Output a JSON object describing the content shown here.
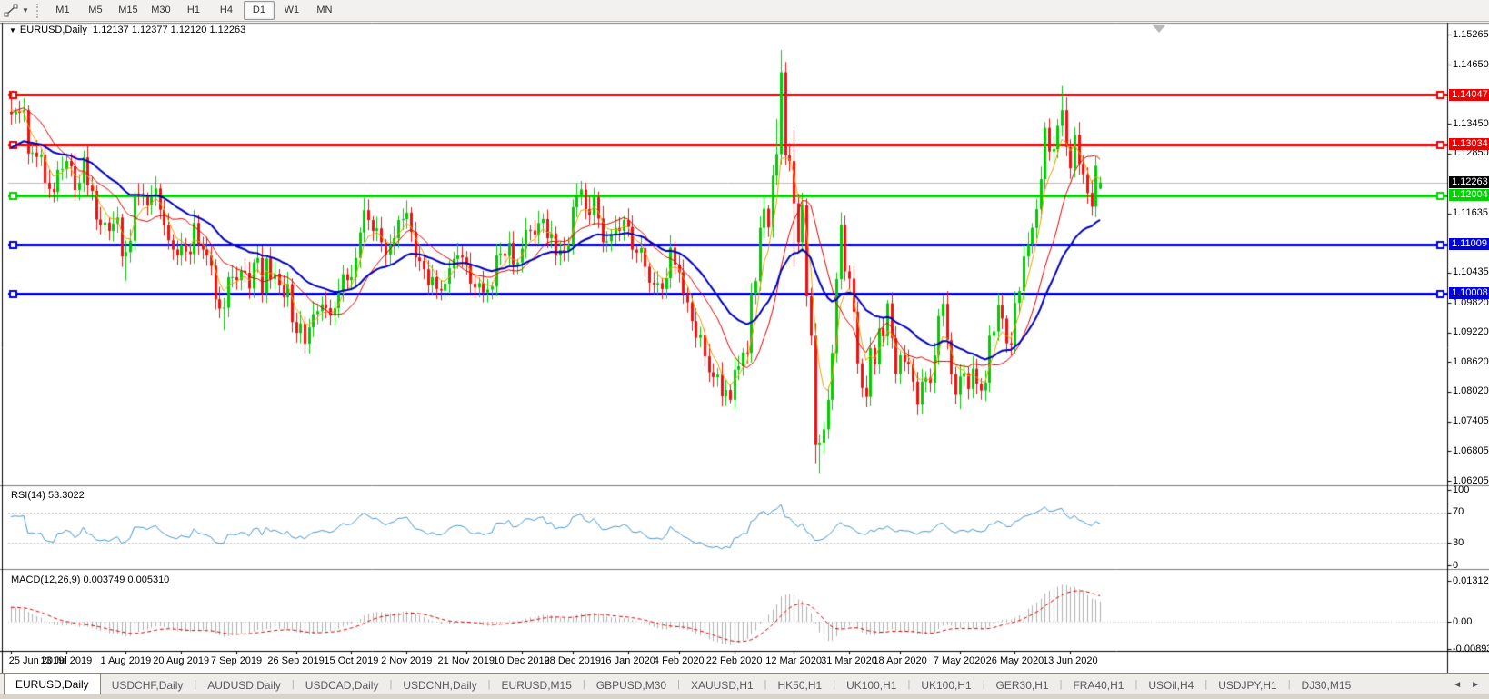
{
  "toolbar": {
    "tool_icon": "line-studies-icon",
    "timeframes": [
      "M1",
      "M5",
      "M15",
      "M30",
      "H1",
      "H4",
      "D1",
      "W1",
      "MN"
    ],
    "active_timeframe": "D1"
  },
  "chart": {
    "title": "EURUSD,Daily",
    "ohlc_text": "1.12137 1.12377 1.12120 1.12263",
    "dropdown_glyph": "▼"
  },
  "price_axis": {
    "ticks": [
      "1.15265",
      "1.14650",
      "1.13450",
      "1.12850",
      "1.11635",
      "1.10435",
      "1.09820",
      "1.09220",
      "1.08620",
      "1.08020",
      "1.07405",
      "1.06805",
      "1.06205"
    ],
    "tick_values": [
      1.15265,
      1.1465,
      1.1345,
      1.1285,
      1.11635,
      1.10435,
      1.0982,
      1.0922,
      1.0862,
      1.0802,
      1.07405,
      1.06805,
      1.06205
    ]
  },
  "levels": [
    {
      "label": "1.14047",
      "price": 1.14047,
      "color": "#ee0000",
      "text": "#ffffff"
    },
    {
      "label": "1.13034",
      "price": 1.13034,
      "color": "#ee0000",
      "text": "#ffffff"
    },
    {
      "label": "1.12004",
      "price": 1.12004,
      "color": "#00d400",
      "text": "#ffffff"
    },
    {
      "label": "1.11009",
      "price": 1.11009,
      "color": "#0000e0",
      "text": "#ffffff"
    },
    {
      "label": "1.10008",
      "price": 1.10008,
      "color": "#0000e0",
      "text": "#ffffff"
    }
  ],
  "current_price": {
    "label": "1.12263",
    "price": 1.12263,
    "bg": "#000000",
    "text": "#ffffff",
    "line_color": "#bdbdbd"
  },
  "time_axis": {
    "labels": [
      "25 Jun 2019",
      "13 Jul 2019",
      "1 Aug 2019",
      "20 Aug 2019",
      "7 Sep 2019",
      "26 Sep 2019",
      "15 Oct 2019",
      "2 Nov 2019",
      "21 Nov 2019",
      "10 Dec 2019",
      "28 Dec 2019",
      "16 Jan 2020",
      "4 Feb 2020",
      "22 Feb 2020",
      "12 Mar 2020",
      "31 Mar 2020",
      "18 Apr 2020",
      "7 May 2020",
      "26 May 2020",
      "13 Jun 2020"
    ],
    "label_bars": [
      0,
      13,
      27,
      40,
      53,
      67,
      80,
      93,
      107,
      120,
      132,
      145,
      157,
      170,
      184,
      197,
      209,
      223,
      236,
      249
    ]
  },
  "rsi_panel": {
    "title": "RSI(14)",
    "value": "53.3022",
    "ticks": [
      "100",
      "70",
      "30",
      "0"
    ],
    "tick_values": [
      100,
      70,
      30,
      0
    ],
    "levels": [
      70,
      30
    ],
    "period": 14,
    "line_color": "#4496d2"
  },
  "macd_panel": {
    "title": "MACD(12,26,9)",
    "values": "0.003749 0.005310",
    "ticks": [
      "0.013121",
      "0.00",
      "-0.008933"
    ],
    "tick_values": [
      0.013121,
      0.0,
      -0.008933
    ],
    "fast": 12,
    "slow": 26,
    "signal": 9,
    "hist_color": "#b0b0b0",
    "signal_color": "#dd0000"
  },
  "moving_averages": [
    {
      "name": "ma-fast",
      "period": 5,
      "type": "ema",
      "color": "#e8a200",
      "width": 1
    },
    {
      "name": "ma-mid",
      "period": 13,
      "type": "sma",
      "color": "#dd0000",
      "width": 1
    },
    {
      "name": "ma-slow",
      "period": 30,
      "type": "ema",
      "color": "#0000bb",
      "width": 2
    }
  ],
  "candle_colors": {
    "bull_fill": "#00cc00",
    "bull_edge": "#008800",
    "bear_fill": "#ee1111",
    "bear_edge": "#990000"
  },
  "series": {
    "warmup_closes": [
      1.12,
      1.1185,
      1.1165,
      1.1178,
      1.119,
      1.1212,
      1.1222,
      1.1192,
      1.1172,
      1.1158,
      1.1142,
      1.1128,
      1.1118,
      1.1172,
      1.1192,
      1.1222,
      1.1252,
      1.1282,
      1.1302,
      1.1322,
      1.1342,
      1.1357,
      1.1372,
      1.1382,
      1.1392,
      1.1396,
      1.14,
      1.1386,
      1.1376,
      1.137
    ],
    "closes": [
      1.1365,
      1.137,
      1.1368,
      1.1373,
      1.1285,
      1.1287,
      1.1278,
      1.1283,
      1.1226,
      1.1213,
      1.1207,
      1.1252,
      1.1253,
      1.127,
      1.1259,
      1.1211,
      1.1226,
      1.1277,
      1.122,
      1.1209,
      1.1151,
      1.114,
      1.1145,
      1.1128,
      1.1143,
      1.1155,
      1.1076,
      1.1085,
      1.1108,
      1.1202,
      1.12,
      1.1198,
      1.118,
      1.1199,
      1.1214,
      1.1171,
      1.1139,
      1.1109,
      1.109,
      1.1078,
      1.1099,
      1.1086,
      1.1081,
      1.1144,
      1.1101,
      1.109,
      1.1078,
      1.1057,
      1.0989,
      1.097,
      1.0972,
      1.1034,
      1.1034,
      1.1028,
      1.1047,
      1.1043,
      1.1011,
      1.1064,
      1.1073,
      1.1002,
      1.1072,
      1.103,
      1.1041,
      1.1017,
      1.0993,
      1.102,
      1.0943,
      1.0921,
      1.094,
      1.0899,
      1.0932,
      1.0959,
      1.0965,
      1.0979,
      1.0971,
      1.0956,
      1.0971,
      1.1005,
      1.104,
      1.1028,
      1.1034,
      1.1073,
      1.1125,
      1.117,
      1.115,
      1.1128,
      1.1133,
      1.1105,
      1.108,
      1.1099,
      1.1113,
      1.115,
      1.1152,
      1.1165,
      1.1126,
      1.1074,
      1.1067,
      1.105,
      1.1018,
      1.1034,
      1.101,
      1.1007,
      1.1021,
      1.1052,
      1.1071,
      1.1078,
      1.1074,
      1.1059,
      1.1021,
      1.1013,
      1.1022,
      1.1003,
      1.1009,
      1.1015,
      1.1078,
      1.1082,
      1.1077,
      1.1104,
      1.106,
      1.1064,
      1.1092,
      1.113,
      1.1129,
      1.112,
      1.1144,
      1.1152,
      1.1113,
      1.1123,
      1.1078,
      1.1089,
      1.1086,
      1.11,
      1.1176,
      1.1199,
      1.1212,
      1.1172,
      1.116,
      1.1196,
      1.1153,
      1.1105,
      1.1107,
      1.1122,
      1.1134,
      1.1128,
      1.115,
      1.1136,
      1.109,
      1.1084,
      1.1093,
      1.1055,
      1.1023,
      1.1019,
      1.1022,
      1.101,
      1.1032,
      1.1094,
      1.106,
      1.1044,
      1.1,
      1.0983,
      1.0945,
      1.0911,
      1.0917,
      1.0873,
      1.0841,
      1.0831,
      1.0836,
      1.0792,
      1.0805,
      1.0785,
      1.0846,
      1.0853,
      1.0881,
      1.088,
      1.1,
      1.1026,
      1.1134,
      1.1173,
      1.1135,
      1.124,
      1.1284,
      1.145,
      1.1281,
      1.127,
      1.1184,
      1.1105,
      1.118,
      1.0995,
      1.0915,
      1.0693,
      1.0698,
      1.0725,
      1.0785,
      1.088,
      1.103,
      1.114,
      1.1046,
      1.1031,
      1.0964,
      1.0859,
      1.0809,
      1.0791,
      1.089,
      1.0857,
      1.093,
      1.0914,
      1.0981,
      1.091,
      1.0838,
      1.0875,
      1.0862,
      1.0858,
      1.0822,
      1.0775,
      1.0822,
      1.083,
      1.082,
      1.0875,
      1.0955,
      1.098,
      1.0906,
      1.0837,
      1.0795,
      1.0832,
      1.0839,
      1.0807,
      1.0848,
      1.0818,
      1.0804,
      1.082,
      1.0915,
      1.0924,
      1.0977,
      1.095,
      1.09,
      1.0897,
      1.0982,
      1.1006,
      1.1076,
      1.1101,
      1.1134,
      1.1172,
      1.1233,
      1.1337,
      1.1289,
      1.1294,
      1.1341,
      1.1373,
      1.1298,
      1.1255,
      1.1323,
      1.1264,
      1.1243,
      1.1205,
      1.1177,
      1.126,
      1.1226
    ],
    "wick_overrides": [
      [
        0,
        "h",
        1.1412
      ],
      [
        27,
        "l",
        1.1027
      ],
      [
        50,
        "l",
        1.0926
      ],
      [
        70,
        "l",
        1.0879
      ],
      [
        169,
        "l",
        1.0778
      ],
      [
        180,
        "h",
        1.1355
      ],
      [
        181,
        "h",
        1.1495
      ],
      [
        184,
        "h",
        1.1333
      ],
      [
        184,
        "l",
        1.1055
      ],
      [
        189,
        "l",
        1.0656
      ],
      [
        190,
        "l",
        1.0636
      ],
      [
        223,
        "l",
        1.0766
      ],
      [
        247,
        "h",
        1.1422
      ]
    ],
    "last_candle": {
      "open": 1.12137,
      "high": 1.12377,
      "low": 1.1212,
      "close": 1.12263
    }
  },
  "tabs": [
    "EURUSD,Daily",
    "USDCHF,Daily",
    "AUDUSD,Daily",
    "USDCAD,Daily",
    "USDCNH,Daily",
    "EURUSD,M15",
    "GBPUSD,M30",
    "XAUUSD,H1",
    "HK50,H1",
    "UK100,H1",
    "UK100,H1",
    "GER30,H1",
    "FRA40,H1",
    "USOil,H4",
    "USDJPY,H1",
    "DJ30,M15"
  ],
  "active_tab": "EURUSD,Daily",
  "tab_nav": {
    "left": "◄",
    "right": "►"
  }
}
